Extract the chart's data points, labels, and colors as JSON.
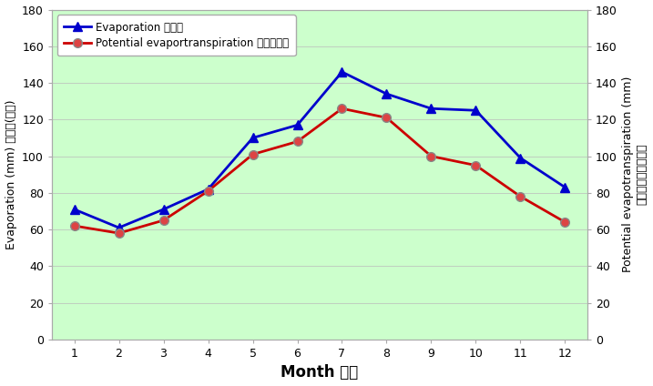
{
  "months": [
    1,
    2,
    3,
    4,
    5,
    6,
    7,
    8,
    9,
    10,
    11,
    12
  ],
  "evaporation": [
    71,
    61,
    71,
    82,
    110,
    117,
    146,
    134,
    126,
    125,
    99,
    83
  ],
  "pet": [
    62,
    58,
    65,
    81,
    101,
    108,
    126,
    121,
    100,
    95,
    78,
    64
  ],
  "evap_color": "#0000CC",
  "pet_color": "#CC0000",
  "bg_color": "#CCFFCC",
  "outer_bg": "#ffffff",
  "xlabel": "Month 月份",
  "ylabel_left": "Evaporation (mm) 蔣發量(毫米)",
  "ylabel_right_en": "Potential evapotranspiration (mm)",
  "ylabel_right_zh": "可能蔣散量（毫米）",
  "legend_evap": "Evaporation 蔣發量",
  "legend_pet": "Potential evaportranspiration 可能蔣散量",
  "ylim": [
    0,
    180
  ],
  "yticks": [
    0,
    20,
    40,
    60,
    80,
    100,
    120,
    140,
    160,
    180
  ],
  "xticks": [
    1,
    2,
    3,
    4,
    5,
    6,
    7,
    8,
    9,
    10,
    11,
    12
  ],
  "figsize": [
    7.17,
    4.24
  ],
  "dpi": 100,
  "grid_color": "#bbbbbb",
  "spine_color": "#aaaaaa",
  "tick_fontsize": 9,
  "label_fontsize": 9,
  "xlabel_fontsize": 12,
  "legend_fontsize": 8.5,
  "marker_evap": "^",
  "marker_pet": "o",
  "markersize": 7,
  "linewidth": 2
}
